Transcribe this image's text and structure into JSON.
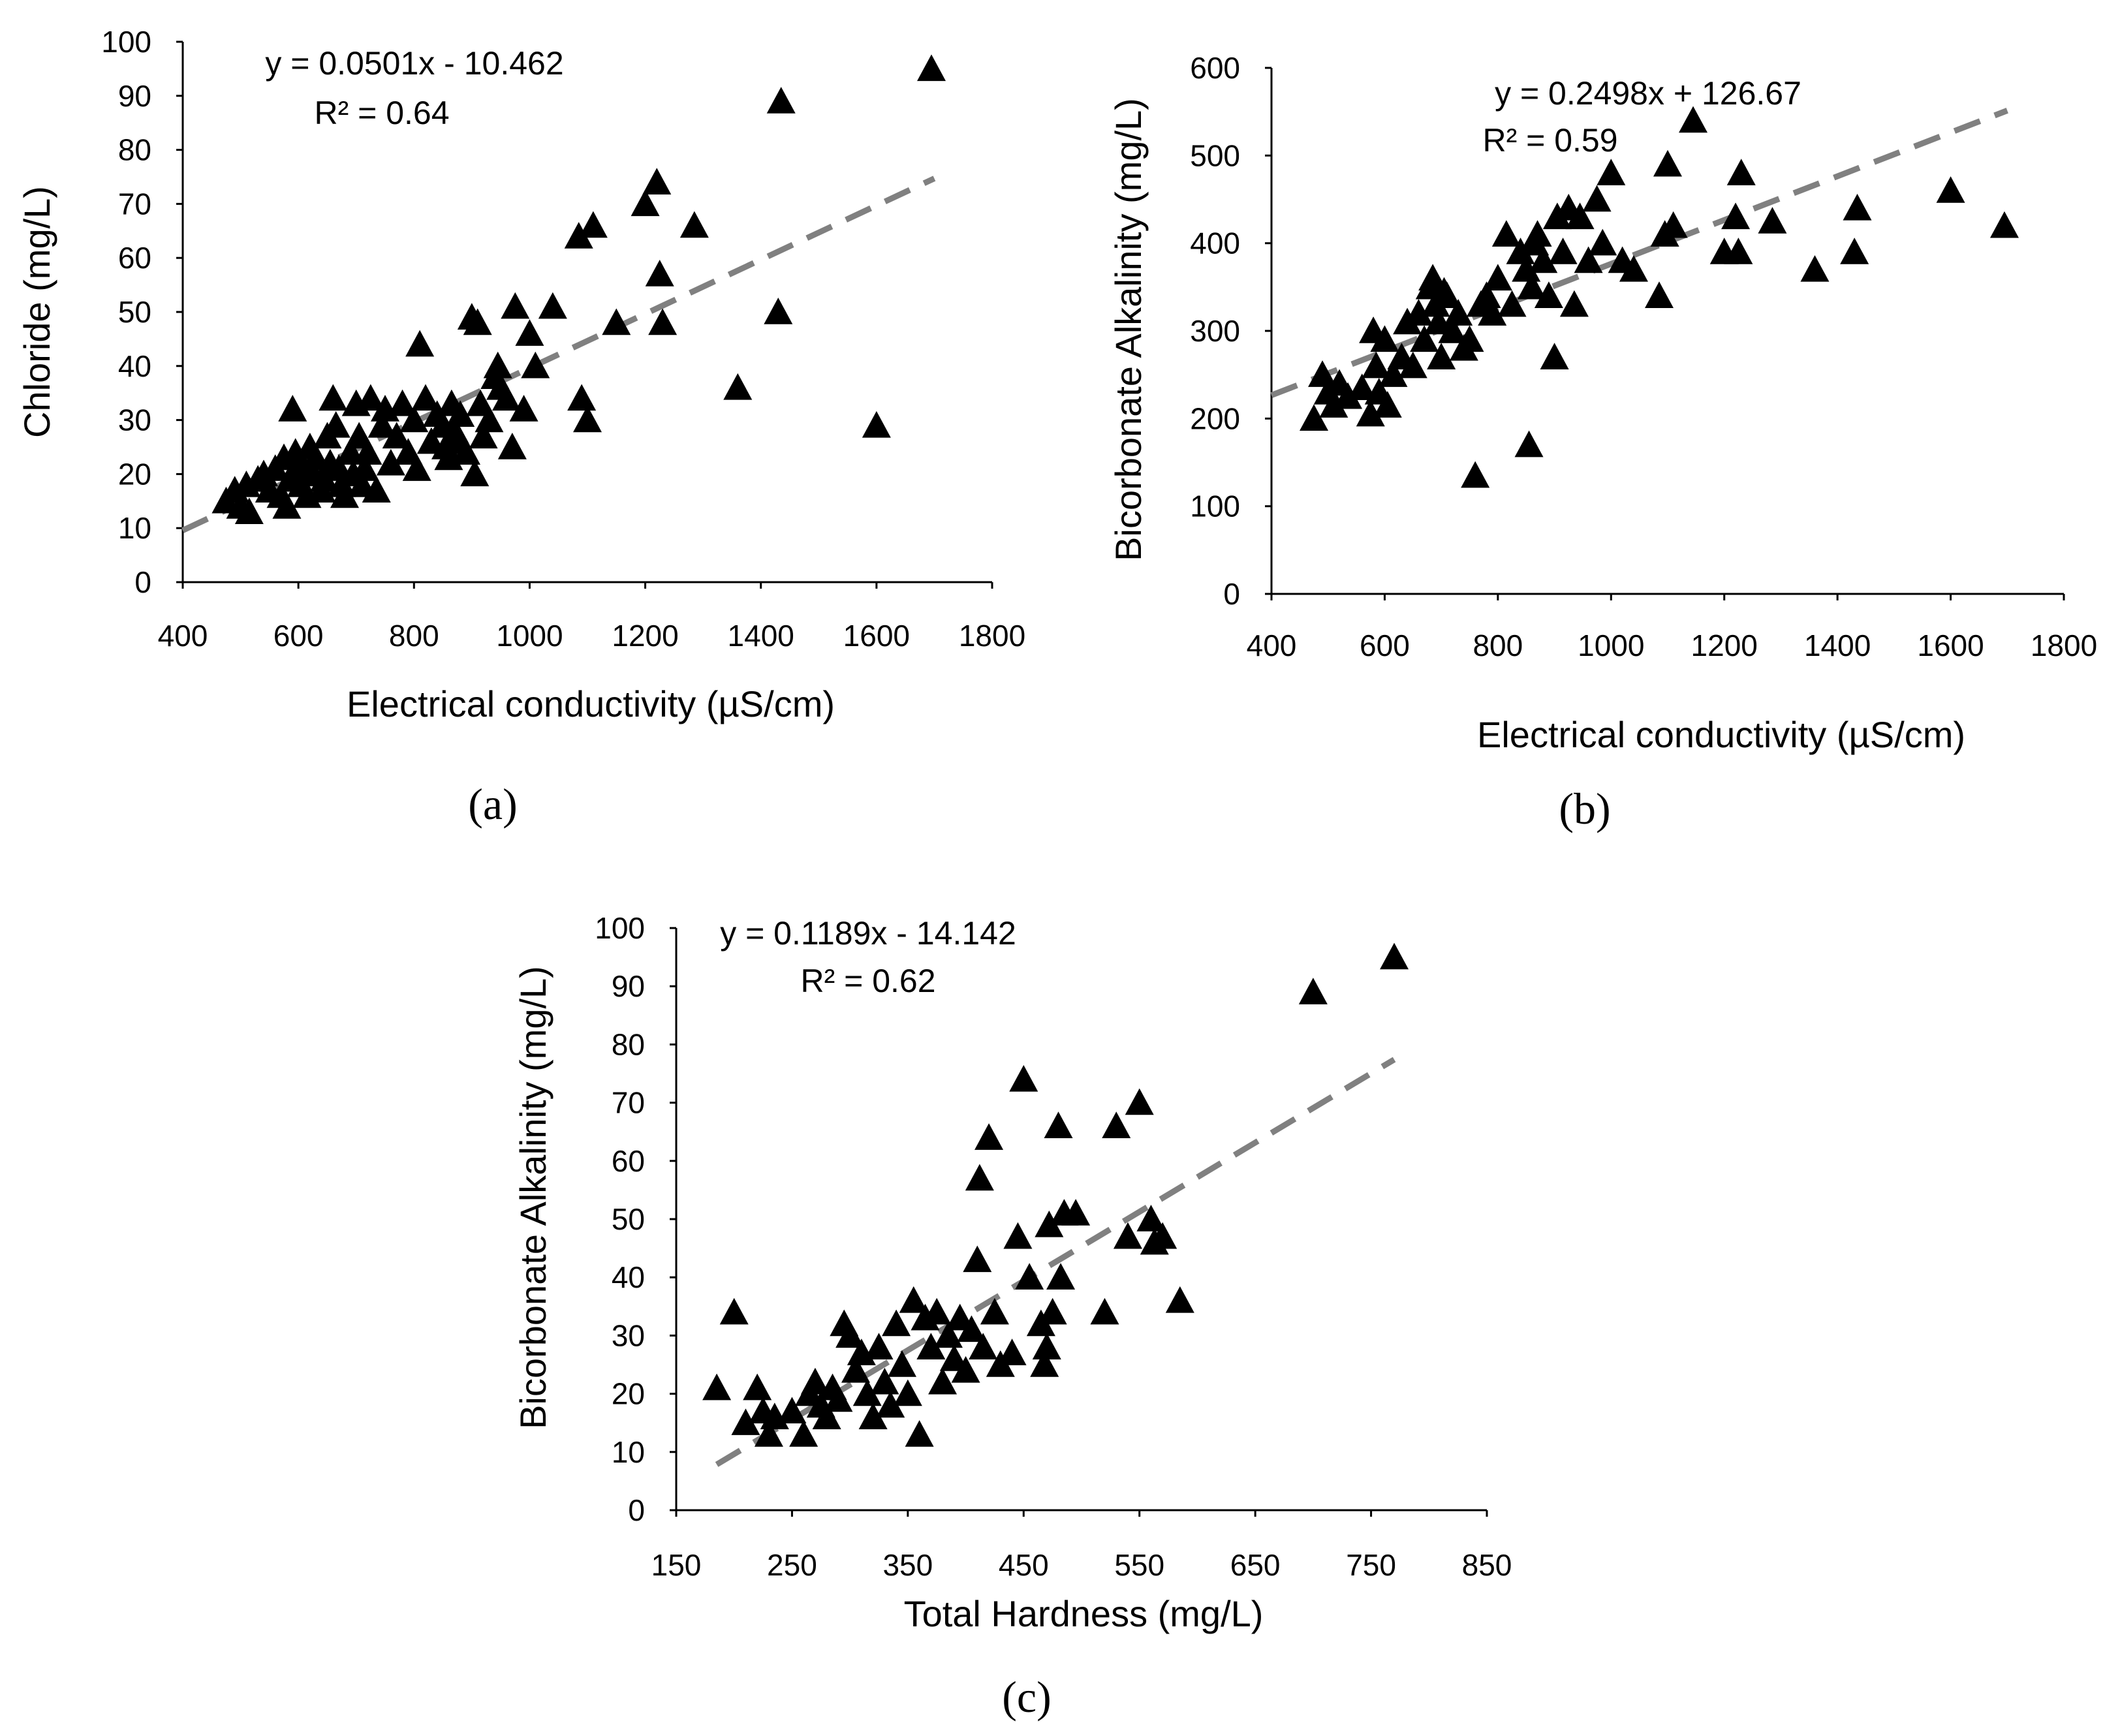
{
  "chart_data": [
    {
      "type": "scatter",
      "panel_label": "(a)",
      "xlabel": "Electrical conductivity (µS/cm)",
      "ylabel": "Chloride (mg/L)",
      "xlim": [
        400,
        1800
      ],
      "ylim": [
        0,
        100
      ],
      "xticks": [
        400,
        600,
        800,
        1000,
        1200,
        1400,
        1600,
        1800
      ],
      "yticks": [
        0,
        10,
        20,
        30,
        40,
        50,
        60,
        70,
        80,
        90,
        100
      ],
      "marker": "triangle",
      "marker_color": "#000000",
      "equation": "y = 0.0501x - 10.462",
      "r2": "R² = 0.64",
      "trendline": {
        "slope": 0.0501,
        "intercept": -10.462,
        "x_range": [
          400,
          1700
        ],
        "style": "dashed",
        "color": "#808080"
      },
      "points": [
        [
          475,
          15
        ],
        [
          490,
          17
        ],
        [
          500,
          14
        ],
        [
          510,
          18
        ],
        [
          515,
          13
        ],
        [
          530,
          19
        ],
        [
          540,
          20
        ],
        [
          550,
          17
        ],
        [
          560,
          21
        ],
        [
          570,
          16
        ],
        [
          575,
          23
        ],
        [
          580,
          14
        ],
        [
          585,
          19
        ],
        [
          590,
          32
        ],
        [
          595,
          24
        ],
        [
          600,
          22
        ],
        [
          605,
          18
        ],
        [
          610,
          21
        ],
        [
          615,
          16
        ],
        [
          620,
          25
        ],
        [
          625,
          20
        ],
        [
          630,
          23
        ],
        [
          640,
          17
        ],
        [
          645,
          19
        ],
        [
          650,
          27
        ],
        [
          655,
          22
        ],
        [
          660,
          34
        ],
        [
          665,
          29
        ],
        [
          670,
          21
        ],
        [
          675,
          18
        ],
        [
          680,
          16
        ],
        [
          690,
          24
        ],
        [
          695,
          20
        ],
        [
          700,
          33
        ],
        [
          705,
          27
        ],
        [
          710,
          18
        ],
        [
          715,
          21
        ],
        [
          720,
          24
        ],
        [
          725,
          34
        ],
        [
          735,
          17
        ],
        [
          745,
          29
        ],
        [
          750,
          32
        ],
        [
          760,
          22
        ],
        [
          770,
          27
        ],
        [
          780,
          33
        ],
        [
          790,
          24
        ],
        [
          800,
          30
        ],
        [
          805,
          21
        ],
        [
          810,
          44
        ],
        [
          820,
          34
        ],
        [
          830,
          26
        ],
        [
          840,
          31
        ],
        [
          850,
          29
        ],
        [
          855,
          25
        ],
        [
          860,
          23
        ],
        [
          865,
          33
        ],
        [
          870,
          28
        ],
        [
          875,
          26
        ],
        [
          880,
          31
        ],
        [
          890,
          24
        ],
        [
          900,
          49
        ],
        [
          905,
          20
        ],
        [
          910,
          48
        ],
        [
          915,
          33
        ],
        [
          920,
          27
        ],
        [
          930,
          30
        ],
        [
          940,
          38
        ],
        [
          945,
          40
        ],
        [
          950,
          36
        ],
        [
          960,
          34
        ],
        [
          970,
          25
        ],
        [
          975,
          51
        ],
        [
          990,
          32
        ],
        [
          1000,
          46
        ],
        [
          1010,
          40
        ],
        [
          1040,
          51
        ],
        [
          1085,
          64
        ],
        [
          1090,
          34
        ],
        [
          1100,
          30
        ],
        [
          1110,
          66
        ],
        [
          1150,
          48
        ],
        [
          1200,
          70
        ],
        [
          1220,
          74
        ],
        [
          1225,
          57
        ],
        [
          1230,
          48
        ],
        [
          1285,
          66
        ],
        [
          1360,
          36
        ],
        [
          1430,
          50
        ],
        [
          1435,
          89
        ],
        [
          1600,
          29
        ],
        [
          1695,
          95
        ]
      ]
    },
    {
      "type": "scatter",
      "panel_label": "(b)",
      "xlabel": "Electrical conductivity (µS/cm)",
      "ylabel": "Bicorbonate Alkalinity (mg/L)",
      "xlim": [
        400,
        1800
      ],
      "ylim": [
        0,
        600
      ],
      "xticks": [
        400,
        600,
        800,
        1000,
        1200,
        1400,
        1600,
        1800
      ],
      "yticks": [
        0,
        100,
        200,
        300,
        400,
        500,
        600
      ],
      "marker": "triangle",
      "marker_color": "#000000",
      "equation": "y = 0.2498x + 126.67",
      "r2": "R² = 0.59",
      "trendline": {
        "slope": 0.2498,
        "intercept": 126.67,
        "x_range": [
          400,
          1700
        ],
        "style": "dashed",
        "color": "#808080"
      },
      "points": [
        [
          475,
          200
        ],
        [
          490,
          250
        ],
        [
          500,
          230
        ],
        [
          510,
          215
        ],
        [
          520,
          240
        ],
        [
          535,
          225
        ],
        [
          560,
          235
        ],
        [
          575,
          205
        ],
        [
          580,
          300
        ],
        [
          585,
          260
        ],
        [
          590,
          230
        ],
        [
          600,
          290
        ],
        [
          605,
          215
        ],
        [
          615,
          250
        ],
        [
          630,
          270
        ],
        [
          640,
          310
        ],
        [
          650,
          260
        ],
        [
          660,
          320
        ],
        [
          670,
          290
        ],
        [
          680,
          350
        ],
        [
          685,
          360
        ],
        [
          690,
          330
        ],
        [
          695,
          310
        ],
        [
          700,
          270
        ],
        [
          705,
          345
        ],
        [
          710,
          340
        ],
        [
          720,
          300
        ],
        [
          730,
          320
        ],
        [
          740,
          280
        ],
        [
          750,
          290
        ],
        [
          760,
          135
        ],
        [
          770,
          330
        ],
        [
          780,
          340
        ],
        [
          790,
          320
        ],
        [
          800,
          360
        ],
        [
          815,
          410
        ],
        [
          825,
          330
        ],
        [
          840,
          390
        ],
        [
          850,
          370
        ],
        [
          855,
          170
        ],
        [
          860,
          350
        ],
        [
          865,
          400
        ],
        [
          870,
          410
        ],
        [
          880,
          380
        ],
        [
          890,
          340
        ],
        [
          900,
          270
        ],
        [
          905,
          430
        ],
        [
          915,
          390
        ],
        [
          925,
          440
        ],
        [
          935,
          330
        ],
        [
          945,
          430
        ],
        [
          960,
          380
        ],
        [
          975,
          450
        ],
        [
          985,
          400
        ],
        [
          1000,
          480
        ],
        [
          1020,
          380
        ],
        [
          1040,
          370
        ],
        [
          1085,
          340
        ],
        [
          1095,
          410
        ],
        [
          1100,
          490
        ],
        [
          1110,
          420
        ],
        [
          1145,
          540
        ],
        [
          1200,
          390
        ],
        [
          1220,
          430
        ],
        [
          1225,
          390
        ],
        [
          1230,
          480
        ],
        [
          1285,
          425
        ],
        [
          1360,
          370
        ],
        [
          1430,
          390
        ],
        [
          1435,
          440
        ],
        [
          1600,
          460
        ],
        [
          1695,
          420
        ]
      ]
    },
    {
      "type": "scatter",
      "panel_label": "(c)",
      "xlabel": "Total Hardness (mg/L)",
      "ylabel": "Bicorbonate Alkalinity (mg/L)",
      "xlim": [
        150,
        850
      ],
      "ylim": [
        0,
        100
      ],
      "xticks": [
        150,
        250,
        350,
        450,
        550,
        650,
        750,
        850
      ],
      "yticks": [
        0,
        10,
        20,
        30,
        40,
        50,
        60,
        70,
        80,
        90,
        100
      ],
      "marker": "triangle",
      "marker_color": "#000000",
      "equation": "y = 0.1189x - 14.142",
      "r2": "R² = 0.62",
      "trendline": {
        "slope": 0.1189,
        "intercept": -14.142,
        "x_range": [
          185,
          770
        ],
        "style": "dashed",
        "color": "#808080"
      },
      "points": [
        [
          185,
          21
        ],
        [
          200,
          34
        ],
        [
          210,
          15
        ],
        [
          220,
          21
        ],
        [
          225,
          17
        ],
        [
          230,
          13
        ],
        [
          235,
          16
        ],
        [
          250,
          17
        ],
        [
          260,
          13
        ],
        [
          265,
          20
        ],
        [
          270,
          22
        ],
        [
          275,
          18
        ],
        [
          280,
          16
        ],
        [
          285,
          21
        ],
        [
          290,
          19
        ],
        [
          295,
          32
        ],
        [
          300,
          30
        ],
        [
          305,
          24
        ],
        [
          310,
          27
        ],
        [
          315,
          20
        ],
        [
          320,
          16
        ],
        [
          325,
          28
        ],
        [
          330,
          22
        ],
        [
          335,
          18
        ],
        [
          340,
          32
        ],
        [
          345,
          25
        ],
        [
          350,
          20
        ],
        [
          355,
          36
        ],
        [
          360,
          13
        ],
        [
          365,
          33
        ],
        [
          370,
          28
        ],
        [
          375,
          34
        ],
        [
          380,
          22
        ],
        [
          385,
          30
        ],
        [
          390,
          26
        ],
        [
          395,
          33
        ],
        [
          400,
          24
        ],
        [
          405,
          31
        ],
        [
          410,
          43
        ],
        [
          412,
          57
        ],
        [
          415,
          28
        ],
        [
          420,
          64
        ],
        [
          425,
          34
        ],
        [
          430,
          25
        ],
        [
          440,
          27
        ],
        [
          445,
          47
        ],
        [
          450,
          74
        ],
        [
          455,
          40
        ],
        [
          465,
          32
        ],
        [
          468,
          25
        ],
        [
          470,
          28
        ],
        [
          472,
          49
        ],
        [
          475,
          34
        ],
        [
          480,
          66
        ],
        [
          482,
          40
        ],
        [
          485,
          51
        ],
        [
          495,
          51
        ],
        [
          520,
          34
        ],
        [
          530,
          66
        ],
        [
          540,
          47
        ],
        [
          550,
          70
        ],
        [
          560,
          50
        ],
        [
          563,
          46
        ],
        [
          570,
          47
        ],
        [
          585,
          36
        ],
        [
          700,
          89
        ],
        [
          770,
          95
        ]
      ]
    }
  ]
}
